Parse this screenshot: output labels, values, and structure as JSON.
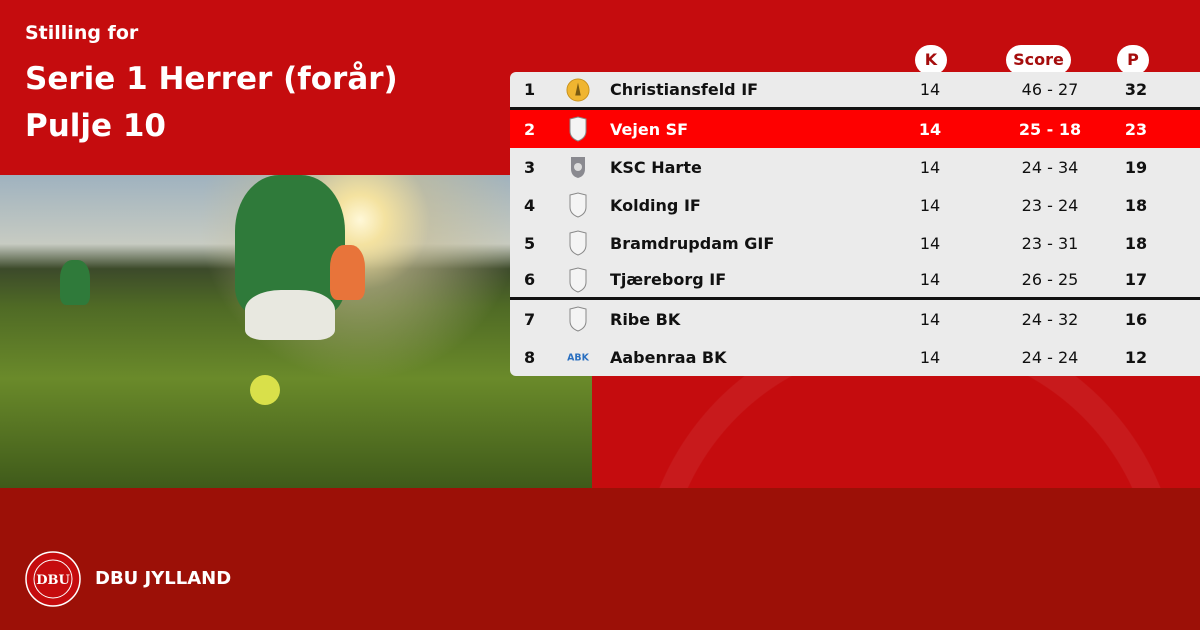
{
  "header": {
    "subtitle": "Stilling for",
    "title_line1": "Serie 1 Herrer (forår)",
    "title_line2": "Pulje 10"
  },
  "columns": {
    "k": "K",
    "score": "Score",
    "p": "P"
  },
  "colors": {
    "primary_red": "#c50c0e",
    "highlight_red": "#fe0000",
    "footer_red": "#9c1007"
  },
  "rows": [
    {
      "pos": "1",
      "team": "Christiansfeld IF",
      "k": "14",
      "score": "46 - 27",
      "p": "32",
      "logo": "gold-crest"
    },
    {
      "pos": "2",
      "team": "Vejen SF",
      "k": "14",
      "score": "25 - 18",
      "p": "23",
      "logo": "shield-placeholder",
      "highlighted": true
    },
    {
      "pos": "3",
      "team": "KSC Harte",
      "k": "14",
      "score": "24 - 34",
      "p": "19",
      "logo": "grey-shield"
    },
    {
      "pos": "4",
      "team": "Kolding IF",
      "k": "14",
      "score": "23 - 24",
      "p": "18",
      "logo": "shield-placeholder"
    },
    {
      "pos": "5",
      "team": "Bramdrupdam GIF",
      "k": "14",
      "score": "23 - 31",
      "p": "18",
      "logo": "shield-placeholder"
    },
    {
      "pos": "6",
      "team": "Tjæreborg IF",
      "k": "14",
      "score": "26 - 25",
      "p": "17",
      "logo": "shield-placeholder"
    },
    {
      "pos": "7",
      "team": "Ribe BK",
      "k": "14",
      "score": "24 - 32",
      "p": "16",
      "logo": "shield-placeholder"
    },
    {
      "pos": "8",
      "team": "Aabenraa BK",
      "k": "14",
      "score": "24 - 24",
      "p": "12",
      "logo": "abk-crest"
    }
  ],
  "footer": {
    "brand": "DBU JYLLAND",
    "emblem_text": "DBU"
  }
}
